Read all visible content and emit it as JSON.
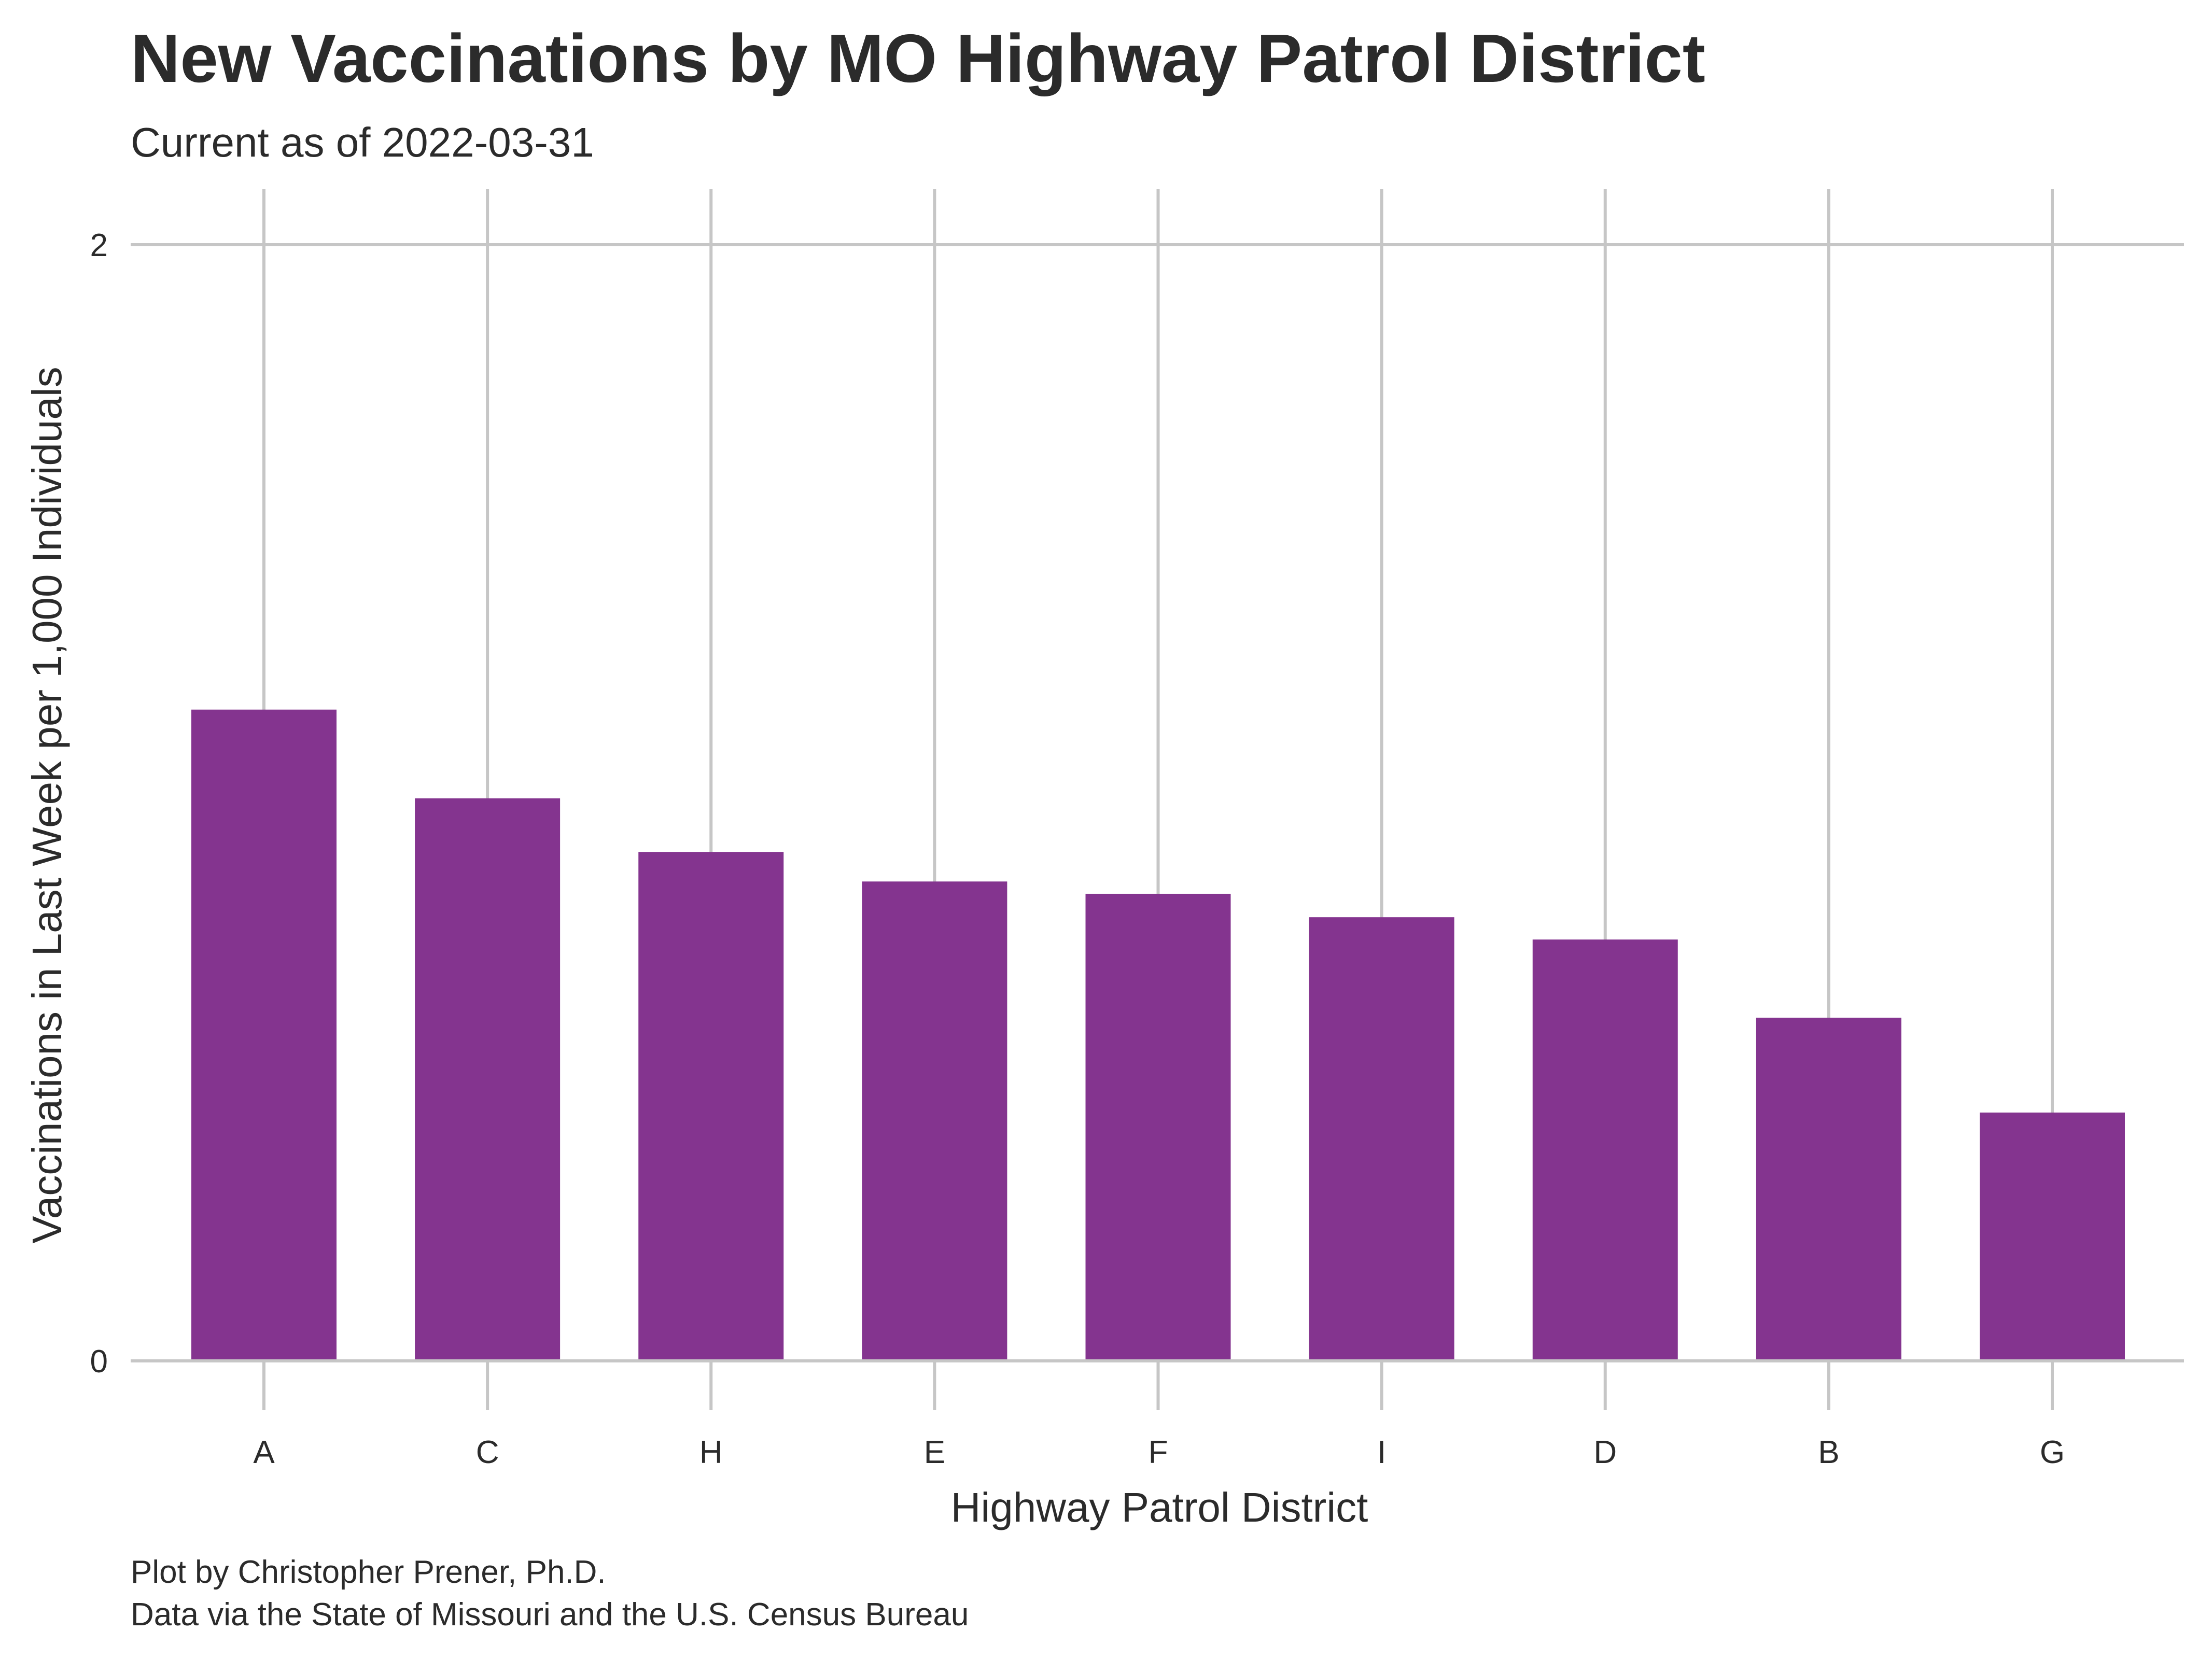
{
  "chart_data": {
    "type": "bar",
    "title": "New Vaccinations by MO Highway Patrol District",
    "subtitle": "Current as of 2022-03-31",
    "xlabel": "Highway Patrol District",
    "ylabel": "Vaccinations in Last Week per 1,000 Individuals",
    "categories": [
      "A",
      "C",
      "H",
      "E",
      "F",
      "I",
      "D",
      "B",
      "G"
    ],
    "values": [
      1.167,
      1.008,
      0.912,
      0.859,
      0.837,
      0.795,
      0.755,
      0.615,
      0.445
    ],
    "ylim": [
      0,
      2
    ],
    "yticks": [
      0,
      2
    ],
    "ytick_labels": [
      "0",
      "2"
    ],
    "grid": true,
    "bar_color": "#84348f",
    "grid_color": "#c6c6c6",
    "caption": [
      "Plot by Christopher Prener, Ph.D.",
      "Data via the State of Missouri and the U.S. Census Bureau"
    ]
  }
}
